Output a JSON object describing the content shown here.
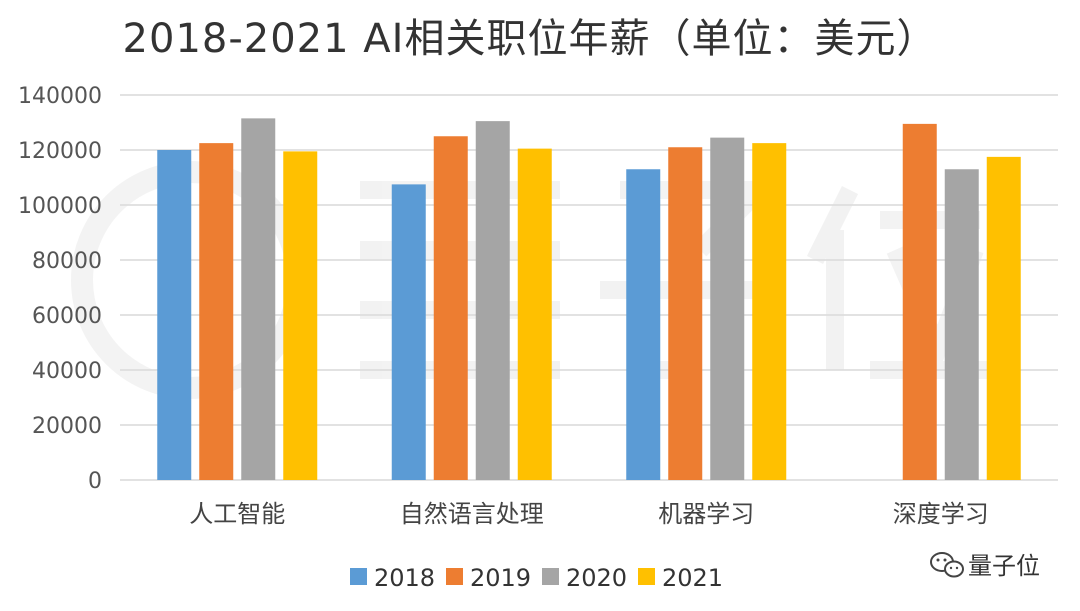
{
  "chart_data": {
    "type": "bar",
    "title": "2018-2021 AI相关职位年薪（单位：美元）",
    "categories": [
      "人工智能",
      "自然语言处理",
      "机器学习",
      "深度学习"
    ],
    "series": [
      {
        "name": "2018",
        "color": "#5B9BD5",
        "values": [
          120000,
          107500,
          113000,
          null
        ]
      },
      {
        "name": "2019",
        "color": "#ED7D31",
        "values": [
          122500,
          125000,
          121000,
          129500
        ]
      },
      {
        "name": "2020",
        "color": "#A5A5A5",
        "values": [
          131500,
          130500,
          124500,
          113000
        ]
      },
      {
        "name": "2021",
        "color": "#FFC000",
        "values": [
          119500,
          120500,
          122500,
          117500
        ]
      }
    ],
    "y_ticks": [
      "0",
      "20000",
      "40000",
      "60000",
      "80000",
      "100000",
      "120000",
      "140000"
    ],
    "ylim": [
      0,
      140000
    ],
    "grid": true,
    "legend_position": "bottom"
  },
  "watermark": {
    "text": "量子位",
    "logo_icon": "wechat-icon"
  }
}
